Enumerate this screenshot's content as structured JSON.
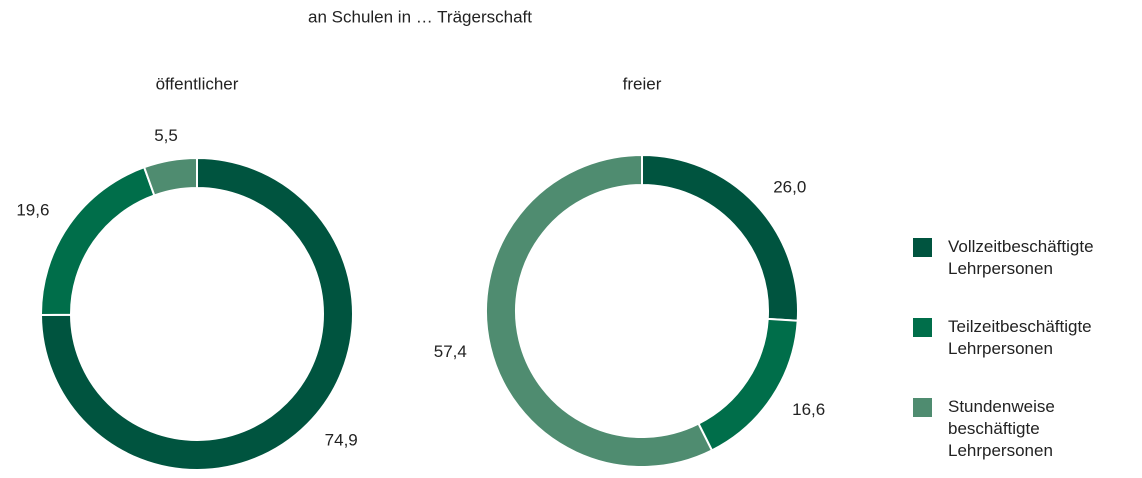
{
  "title": "an Schulen in … Trägerschaft",
  "chart_data": [
    {
      "type": "pie",
      "title": "öffentlicher",
      "categories": [
        "Vollzeitbeschäftigte Lehrpersonen",
        "Teilzeitbeschäftigte Lehrpersonen",
        "Stundenweise beschäftigte Lehrpersonen"
      ],
      "values": [
        74.9,
        19.6,
        5.5
      ],
      "value_labels": [
        "74,9",
        "19,6",
        "5,5"
      ],
      "colors": [
        "#00543f",
        "#006e4a",
        "#4f8c70"
      ]
    },
    {
      "type": "pie",
      "title": "freier",
      "categories": [
        "Vollzeitbeschäftigte Lehrpersonen",
        "Teilzeitbeschäftigte Lehrpersonen",
        "Stundenweise beschäftigte Lehrpersonen"
      ],
      "values": [
        26.0,
        16.6,
        57.4
      ],
      "value_labels": [
        "26,0",
        "16,6",
        "57,4"
      ],
      "colors": [
        "#00543f",
        "#006e4a",
        "#4f8c70"
      ]
    }
  ]
}
